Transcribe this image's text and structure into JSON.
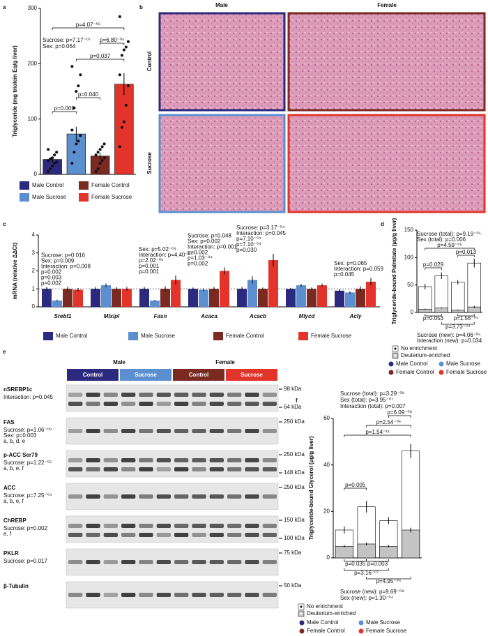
{
  "chart_data": [
    {
      "type": "bar",
      "ylabel": "Triglyceride (mg triolein Eq/g liver)",
      "categories": [
        "Male Control",
        "Male Sucrose",
        "Female Control",
        "Female Sucrose"
      ],
      "colors": [
        "#2b2a7e",
        "#5b8fd0",
        "#7b2a22",
        "#e2342a"
      ],
      "values": [
        27,
        73,
        33,
        163
      ],
      "errors": [
        5,
        13,
        6,
        20
      ],
      "points": [
        [
          5,
          10,
          15,
          20,
          22,
          25,
          28,
          30,
          35,
          40,
          45
        ],
        [
          20,
          40,
          55,
          60,
          70,
          80,
          120,
          150,
          160,
          180,
          195
        ],
        [
          5,
          10,
          20,
          25,
          30,
          35,
          40,
          45,
          50,
          55
        ],
        [
          50,
          85,
          95,
          125,
          160,
          180,
          215,
          225,
          230,
          240,
          285
        ]
      ],
      "ylim": [
        0,
        300
      ],
      "yticks": [
        0,
        100,
        200,
        300
      ],
      "annotations": [
        "Sucrose: p=7.17⁻⁰⁷",
        "Sex: p=0.064",
        "p=4.07⁻⁰⁶",
        "p=6.80⁻⁰⁵",
        "p=0.037",
        "p=0.040",
        "p=0.009"
      ]
    },
    {
      "type": "grouped",
      "ylabel": "mRNA (relative ΔΔCt)",
      "categories": [
        "Srebf1",
        "Mlxipl",
        "Fasn",
        "Acaca",
        "Acacb",
        "Mlycd",
        "Acly"
      ],
      "series": [
        {
          "name": "Male Control",
          "color": "#2b2a7e",
          "values": [
            1.0,
            1.0,
            1.0,
            1.0,
            1.0,
            1.0,
            0.9
          ],
          "errors": [
            0.1,
            0.1,
            0.1,
            0.08,
            0.1,
            0.06,
            0.08
          ]
        },
        {
          "name": "Male Sucrose",
          "color": "#5b8fd0",
          "values": [
            0.35,
            1.2,
            0.35,
            0.95,
            1.5,
            1.2,
            0.8
          ],
          "errors": [
            0.05,
            0.1,
            0.04,
            0.08,
            0.2,
            0.08,
            0.08
          ]
        },
        {
          "name": "Female Control",
          "color": "#7b2a22",
          "values": [
            1.0,
            1.0,
            1.0,
            1.0,
            1.0,
            1.0,
            1.0
          ],
          "errors": [
            0.12,
            0.1,
            0.15,
            0.1,
            0.08,
            0.08,
            0.15
          ]
        },
        {
          "name": "Female Sucrose",
          "color": "#e2342a",
          "values": [
            0.95,
            1.0,
            1.5,
            2.0,
            2.6,
            1.2,
            1.4
          ],
          "errors": [
            0.1,
            0.1,
            0.25,
            0.2,
            0.35,
            0.1,
            0.2
          ]
        }
      ],
      "notes": [
        [
          "Sucrose: p=0.016",
          "Sex: p=0.009",
          "Interaction: p=0.008",
          "p=0.002",
          "p=0.003",
          "p=0.002"
        ],
        [],
        [
          "Sex: p=5.02⁻⁰⁴",
          "Interaction: p=4.40⁻⁰⁴",
          "p=2.02⁻⁰⁵",
          "p=0.001",
          "p=0.001"
        ],
        [
          "Sucrose: p=0.048",
          "Sex: p=0.002",
          "Interaction: p=0.001",
          "p=0.002",
          "p=1.03⁻⁰⁴",
          "p=0.002"
        ],
        [
          "Sucrose: p=3.17⁻⁰⁴",
          "Interaction: p=0.045",
          "p=7.10⁻⁰⁴",
          "p=7.10⁻⁰⁴",
          "p=0.030"
        ],
        [],
        [
          "Sex: p=0.065",
          "Interaction: p=0.059",
          "p=0.045"
        ]
      ],
      "reference_line": 1,
      "ylim": [
        0,
        4
      ],
      "yticks": [
        0,
        1,
        2,
        3,
        4
      ]
    },
    {
      "type": "overlay",
      "ylabel": "Triglyceride-bound Palmitate (µg/g liver)",
      "categories": [
        "Male Control",
        "Male Sucrose",
        "Female Control",
        "Female Sucrose"
      ],
      "category_colors": [
        "#2b2a7e",
        "#5b8fd0",
        "#7b2a22",
        "#e2342a"
      ],
      "series": [
        {
          "name": "No enrichment",
          "color": "#ffffff",
          "values": [
            47,
            67,
            55,
            90
          ],
          "errors": [
            5,
            6,
            4,
            8
          ]
        },
        {
          "name": "Deuterium-enriched",
          "color": "#c4c4c4",
          "values": [
            6,
            8,
            4,
            10
          ],
          "errors": [
            1,
            1,
            1,
            2
          ]
        }
      ],
      "ylim": [
        0,
        150
      ],
      "yticks": [
        0,
        50,
        100,
        150
      ],
      "annotations": [
        "Sucrose (total): p=9.19⁻⁰⁵",
        "Sex (total): p=0.006",
        "p=4.59⁻⁰⁵",
        "p=0.013",
        "p=0.029",
        "p=0.053",
        "p=1.56⁻⁰⁴",
        "p=3.73⁻⁰⁴",
        "Sucrose (new): p=4.06⁻⁰⁵",
        "Interaction (new): p=0.034"
      ]
    },
    {
      "type": "overlay",
      "ylabel": "Triglyceride-bound Glycerol (µg/g liver)",
      "categories": [
        "Male Control",
        "Male Sucrose",
        "Female Control",
        "Female Sucrose"
      ],
      "category_colors": [
        "#2b2a7e",
        "#5b8fd0",
        "#7b2a22",
        "#e2342a"
      ],
      "series": [
        {
          "name": "No enrichment",
          "color": "#ffffff",
          "values": [
            12,
            22,
            16,
            46
          ],
          "errors": [
            1.5,
            2.5,
            1.5,
            3
          ]
        },
        {
          "name": "Deuterium-enriched",
          "color": "#c4c4c4",
          "values": [
            5,
            6,
            5,
            12
          ],
          "errors": [
            0.5,
            0.6,
            0.5,
            1
          ]
        }
      ],
      "ylim": [
        0,
        60
      ],
      "yticks": [
        0,
        20,
        40,
        60
      ],
      "annotations": [
        "Sucrose (total): p=3.29⁻⁰⁸",
        "Sex (total): p=3.95⁻⁰⁷",
        "Interaction (total): p=0.007",
        "p=6.09⁻⁰⁸",
        "p=2.54⁻⁰⁶",
        "p=1.54⁻¹¹",
        "p=0.005",
        "p=0.035",
        "p=0.003",
        "p=3.16⁻⁰⁷",
        "p=4.95⁻⁰⁴",
        "Sucrose (new): p=9.69⁻⁰⁸",
        "Sex (new): p=1.30⁻⁰⁴"
      ]
    }
  ],
  "panels": [
    "a",
    "b",
    "c",
    "d",
    "e",
    "f"
  ],
  "histology": {
    "columns": [
      "Male",
      "Female"
    ],
    "rows": [
      "Control",
      "Sucrose"
    ]
  },
  "blot": {
    "sexes": [
      "Male",
      "Female"
    ],
    "groups": [
      "Control",
      "Sucrose",
      "Control",
      "Sucrose"
    ],
    "rows": [
      {
        "name": "nSREBP1c",
        "notes": [
          "Interaction: p=0.045"
        ],
        "markers": [
          "98 kDa",
          "64 kDa"
        ]
      },
      {
        "name": "FAS",
        "notes": [
          "Sucrose: p=1.06⁻⁰⁶",
          "Sex: p=0.003",
          "a, b, d, e"
        ],
        "markers": [
          "250 kDa"
        ]
      },
      {
        "name": "p-ACC Ser79",
        "notes": [
          "Sucrose: p=1.22⁻⁰⁵",
          "a, b, e, f"
        ],
        "markers": [
          "250 kDa",
          "148 kDa"
        ]
      },
      {
        "name": "ACC",
        "notes": [
          "Sucrose: p=7.25⁻⁰⁴",
          "a, b, e, f"
        ],
        "markers": [
          "250 kDa"
        ]
      },
      {
        "name": "ChREBP",
        "notes": [
          "Sucrose: p=0.002",
          "e, f"
        ],
        "markers": [
          "150 kDa",
          "100 kDa"
        ]
      },
      {
        "name": "PKLR",
        "notes": [
          "Sucrose: p=0.017"
        ],
        "markers": [
          "75 kDa"
        ]
      },
      {
        "name": "β-Tubulin",
        "notes": [],
        "markers": [
          "50 kDa"
        ]
      }
    ]
  }
}
